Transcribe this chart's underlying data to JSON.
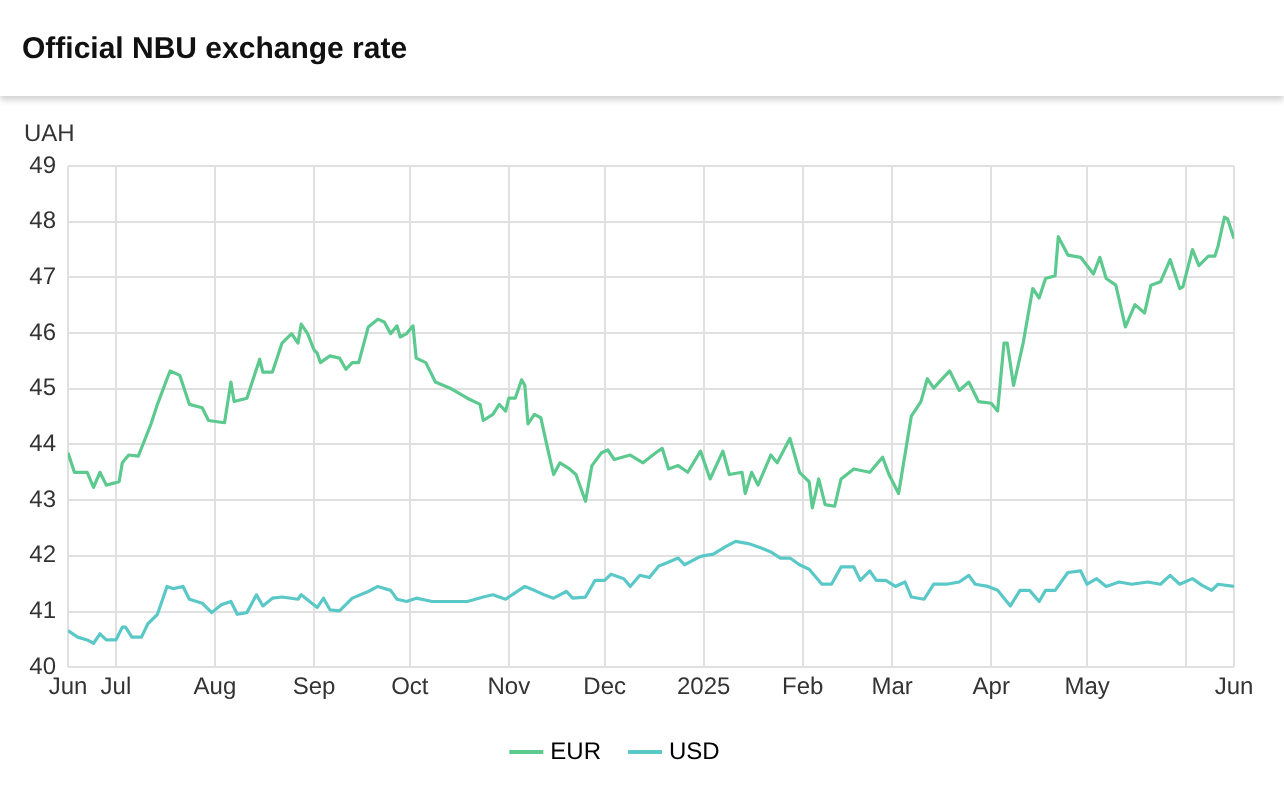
{
  "chart_data": {
    "type": "line",
    "title": "Official NBU exchange rate",
    "ylabel": "UAH",
    "xlim": [
      "2024-06-16",
      "2025-06-16"
    ],
    "xticks": [
      {
        "value": "2024-06-16",
        "label": "Jun"
      },
      {
        "value": "2024-07-01",
        "label": "Jul"
      },
      {
        "value": "2024-08-01",
        "label": "Aug"
      },
      {
        "value": "2024-09-01",
        "label": "Sep"
      },
      {
        "value": "2024-10-01",
        "label": "Oct"
      },
      {
        "value": "2024-11-01",
        "label": "Nov"
      },
      {
        "value": "2024-12-01",
        "label": "Dec"
      },
      {
        "value": "2025-01-01",
        "label": "2025"
      },
      {
        "value": "2025-02-01",
        "label": "Feb"
      },
      {
        "value": "2025-03-01",
        "label": "Mar"
      },
      {
        "value": "2025-04-01",
        "label": "Apr"
      },
      {
        "value": "2025-05-01",
        "label": "May"
      },
      {
        "value": "2025-06-01",
        "label": null
      },
      {
        "value": "2025-06-16",
        "label": "Jun"
      }
    ],
    "ylim": [
      40,
      49
    ],
    "yticks": [
      40,
      41,
      42,
      43,
      44,
      45,
      46,
      47,
      48,
      49
    ],
    "grid": true,
    "legend": "bottom",
    "marker": "none",
    "line_style": "solid",
    "series": [
      {
        "name": "EUR",
        "color": "#5cc98f",
        "x": [
          "2024-06-16",
          "2024-06-18",
          "2024-06-22",
          "2024-06-24",
          "2024-06-26",
          "2024-06-28",
          "2024-07-02",
          "2024-07-03",
          "2024-07-05",
          "2024-07-08",
          "2024-07-10",
          "2024-07-12",
          "2024-07-14",
          "2024-07-17",
          "2024-07-18",
          "2024-07-21",
          "2024-07-24",
          "2024-07-28",
          "2024-07-30",
          "2024-08-04",
          "2024-08-06",
          "2024-08-07",
          "2024-08-11",
          "2024-08-13",
          "2024-08-15",
          "2024-08-16",
          "2024-08-19",
          "2024-08-22",
          "2024-08-25",
          "2024-08-27",
          "2024-08-28",
          "2024-08-30",
          "2024-09-01",
          "2024-09-02",
          "2024-09-03",
          "2024-09-06",
          "2024-09-09",
          "2024-09-11",
          "2024-09-13",
          "2024-09-15",
          "2024-09-18",
          "2024-09-21",
          "2024-09-23",
          "2024-09-25",
          "2024-09-27",
          "2024-09-28",
          "2024-09-30",
          "2024-10-02",
          "2024-10-03",
          "2024-10-06",
          "2024-10-09",
          "2024-10-14",
          "2024-10-19",
          "2024-10-23",
          "2024-10-24",
          "2024-10-27",
          "2024-10-29",
          "2024-10-31",
          "2024-11-01",
          "2024-11-03",
          "2024-11-05",
          "2024-11-06",
          "2024-11-07",
          "2024-11-09",
          "2024-11-11",
          "2024-11-13",
          "2024-11-15",
          "2024-11-17",
          "2024-11-20",
          "2024-11-22",
          "2024-11-25",
          "2024-11-27",
          "2024-11-30",
          "2024-12-02",
          "2024-12-04",
          "2024-12-09",
          "2024-12-13",
          "2024-12-17",
          "2024-12-19",
          "2024-12-21",
          "2024-12-24",
          "2024-12-27",
          "2024-12-31",
          "2025-01-03",
          "2025-01-07",
          "2025-01-09",
          "2025-01-13",
          "2025-01-14",
          "2025-01-16",
          "2025-01-18",
          "2025-01-22",
          "2025-01-24",
          "2025-01-28",
          "2025-01-31",
          "2025-02-03",
          "2025-02-04",
          "2025-02-06",
          "2025-02-08",
          "2025-02-11",
          "2025-02-13",
          "2025-02-17",
          "2025-02-22",
          "2025-02-26",
          "2025-02-28",
          "2025-03-03",
          "2025-03-07",
          "2025-03-10",
          "2025-03-12",
          "2025-03-14",
          "2025-03-17",
          "2025-03-19",
          "2025-03-22",
          "2025-03-25",
          "2025-03-28",
          "2025-04-01",
          "2025-04-03",
          "2025-04-05",
          "2025-04-06",
          "2025-04-08",
          "2025-04-11",
          "2025-04-14",
          "2025-04-16",
          "2025-04-18",
          "2025-04-21",
          "2025-04-22",
          "2025-04-25",
          "2025-04-29",
          "2025-05-03",
          "2025-05-05",
          "2025-05-07",
          "2025-05-10",
          "2025-05-13",
          "2025-05-16",
          "2025-05-19",
          "2025-05-21",
          "2025-05-24",
          "2025-05-27",
          "2025-05-30",
          "2025-05-31",
          "2025-06-03",
          "2025-06-05",
          "2025-06-08",
          "2025-06-10",
          "2025-06-11",
          "2025-06-13",
          "2025-06-14",
          "2025-06-16"
        ],
        "values": [
          43.85,
          43.5,
          43.5,
          43.23,
          43.5,
          43.27,
          43.33,
          43.67,
          43.81,
          43.79,
          44.08,
          44.37,
          44.72,
          45.18,
          45.32,
          45.24,
          44.72,
          44.66,
          44.43,
          44.39,
          45.12,
          44.77,
          44.83,
          45.18,
          45.53,
          45.3,
          45.3,
          45.82,
          45.99,
          45.82,
          46.16,
          45.99,
          45.7,
          45.64,
          45.47,
          45.59,
          45.55,
          45.35,
          45.47,
          45.47,
          46.11,
          46.25,
          46.2,
          45.99,
          46.13,
          45.93,
          45.99,
          46.13,
          45.55,
          45.47,
          45.12,
          45.0,
          44.83,
          44.72,
          44.43,
          44.54,
          44.72,
          44.6,
          44.83,
          44.83,
          45.16,
          45.06,
          44.37,
          44.54,
          44.48,
          43.96,
          43.46,
          43.67,
          43.56,
          43.46,
          42.98,
          43.62,
          43.85,
          43.9,
          43.73,
          43.81,
          43.67,
          43.85,
          43.93,
          43.56,
          43.62,
          43.5,
          43.88,
          43.38,
          43.88,
          43.46,
          43.5,
          43.12,
          43.5,
          43.27,
          43.81,
          43.67,
          44.11,
          43.5,
          43.33,
          42.86,
          43.38,
          42.92,
          42.89,
          43.38,
          43.56,
          43.5,
          43.77,
          43.46,
          43.12,
          44.51,
          44.77,
          45.18,
          45.01,
          45.2,
          45.32,
          44.97,
          45.12,
          44.77,
          44.74,
          44.6,
          45.82,
          45.82,
          45.06,
          45.82,
          46.8,
          46.63,
          46.98,
          47.03,
          47.73,
          47.4,
          47.36,
          47.06,
          47.36,
          46.98,
          46.86,
          46.11,
          46.51,
          46.36,
          46.86,
          46.92,
          47.32,
          46.8,
          46.83,
          47.5,
          47.21,
          47.38,
          47.38,
          47.56,
          48.08,
          48.05,
          47.7
        ]
      },
      {
        "name": "USD",
        "color": "#5bc8c8",
        "x": [
          "2024-06-16",
          "2024-06-19",
          "2024-06-22",
          "2024-06-24",
          "2024-06-26",
          "2024-06-28",
          "2024-07-01",
          "2024-07-03",
          "2024-07-04",
          "2024-07-06",
          "2024-07-09",
          "2024-07-11",
          "2024-07-14",
          "2024-07-17",
          "2024-07-19",
          "2024-07-22",
          "2024-07-24",
          "2024-07-28",
          "2024-07-31",
          "2024-08-03",
          "2024-08-06",
          "2024-08-08",
          "2024-08-11",
          "2024-08-14",
          "2024-08-16",
          "2024-08-19",
          "2024-08-22",
          "2024-08-27",
          "2024-08-28",
          "2024-09-02",
          "2024-09-04",
          "2024-09-06",
          "2024-09-09",
          "2024-09-13",
          "2024-09-18",
          "2024-09-21",
          "2024-09-25",
          "2024-09-27",
          "2024-09-30",
          "2024-10-03",
          "2024-10-08",
          "2024-10-19",
          "2024-10-24",
          "2024-10-27",
          "2024-10-31",
          "2024-11-02",
          "2024-11-06",
          "2024-11-09",
          "2024-11-12",
          "2024-11-15",
          "2024-11-19",
          "2024-11-21",
          "2024-11-25",
          "2024-11-28",
          "2024-12-01",
          "2024-12-03",
          "2024-12-07",
          "2024-12-09",
          "2024-12-12",
          "2024-12-15",
          "2024-12-18",
          "2024-12-19",
          "2024-12-22",
          "2024-12-24",
          "2024-12-26",
          "2024-12-31",
          "2025-01-04",
          "2025-01-08",
          "2025-01-11",
          "2025-01-15",
          "2025-01-19",
          "2025-01-22",
          "2025-01-25",
          "2025-01-28",
          "2025-01-31",
          "2025-02-03",
          "2025-02-07",
          "2025-02-10",
          "2025-02-13",
          "2025-02-17",
          "2025-02-19",
          "2025-02-22",
          "2025-02-24",
          "2025-02-27",
          "2025-03-02",
          "2025-03-05",
          "2025-03-07",
          "2025-03-11",
          "2025-03-14",
          "2025-03-18",
          "2025-03-22",
          "2025-03-25",
          "2025-03-27",
          "2025-03-31",
          "2025-04-03",
          "2025-04-07",
          "2025-04-10",
          "2025-04-13",
          "2025-04-16",
          "2025-04-18",
          "2025-04-21",
          "2025-04-25",
          "2025-04-29",
          "2025-05-01",
          "2025-05-04",
          "2025-05-07",
          "2025-05-11",
          "2025-05-15",
          "2025-05-20",
          "2025-05-24",
          "2025-05-27",
          "2025-05-30",
          "2025-06-03",
          "2025-06-06",
          "2025-06-09",
          "2025-06-11",
          "2025-06-16"
        ],
        "values": [
          40.66,
          40.54,
          40.49,
          40.43,
          40.6,
          40.49,
          40.49,
          40.72,
          40.72,
          40.54,
          40.54,
          40.78,
          40.95,
          41.45,
          41.41,
          41.45,
          41.22,
          41.15,
          40.98,
          41.12,
          41.18,
          40.95,
          40.98,
          41.3,
          41.1,
          41.24,
          41.26,
          41.22,
          41.3,
          41.07,
          41.24,
          41.03,
          41.01,
          41.24,
          41.36,
          41.45,
          41.38,
          41.22,
          41.18,
          41.24,
          41.18,
          41.18,
          41.26,
          41.3,
          41.22,
          41.3,
          41.45,
          41.38,
          41.3,
          41.24,
          41.36,
          41.24,
          41.26,
          41.56,
          41.56,
          41.67,
          41.59,
          41.45,
          41.65,
          41.61,
          41.82,
          41.84,
          41.91,
          41.96,
          41.84,
          41.99,
          42.03,
          42.17,
          42.26,
          42.22,
          42.14,
          42.07,
          41.96,
          41.96,
          41.84,
          41.76,
          41.49,
          41.49,
          41.8,
          41.8,
          41.56,
          41.73,
          41.56,
          41.56,
          41.45,
          41.53,
          41.26,
          41.22,
          41.49,
          41.49,
          41.53,
          41.65,
          41.49,
          41.45,
          41.38,
          41.1,
          41.38,
          41.38,
          41.18,
          41.38,
          41.38,
          41.7,
          41.73,
          41.49,
          41.59,
          41.45,
          41.53,
          41.49,
          41.53,
          41.49,
          41.65,
          41.49,
          41.59,
          41.47,
          41.38,
          41.49,
          41.45
        ]
      }
    ]
  }
}
